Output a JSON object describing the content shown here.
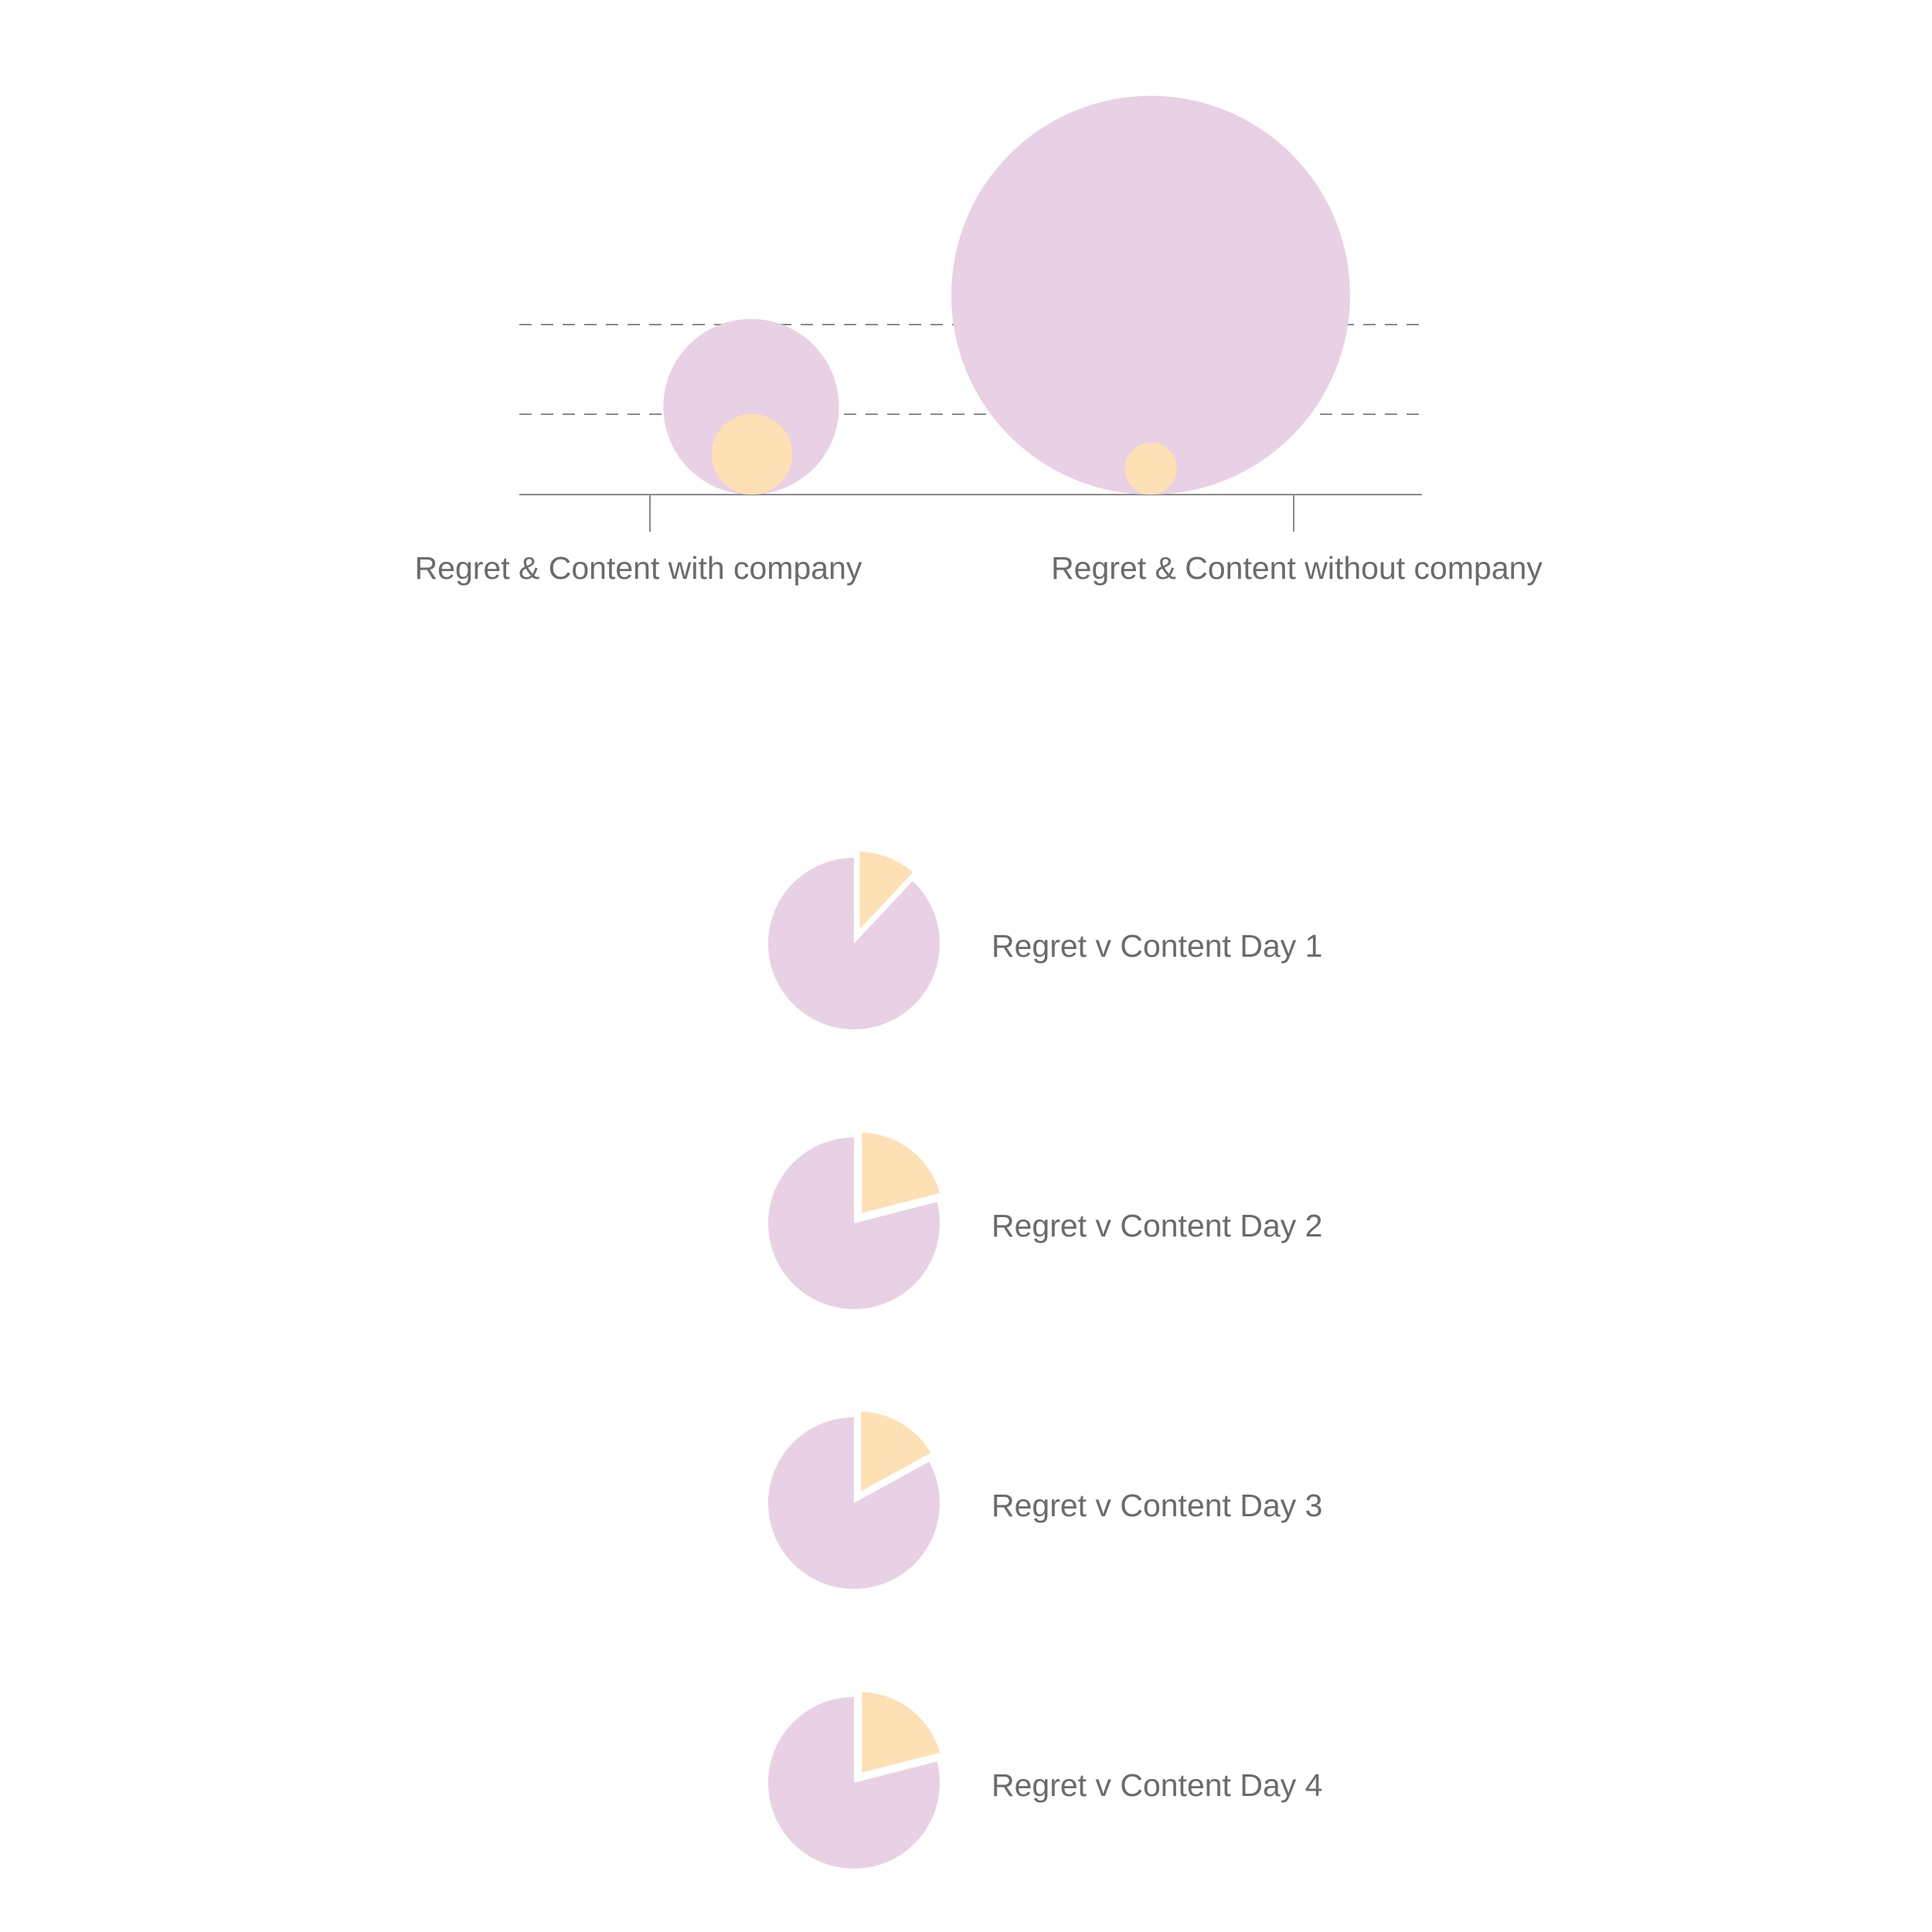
{
  "colors": {
    "regret": "#e8d1e4",
    "content": "#fde0b4",
    "text": "#6b6b6b",
    "axis": "#8a8a8a",
    "gridline": "#8a8a8a",
    "background": "#ffffff"
  },
  "chart_data": [
    {
      "type": "bubble",
      "grid": "dashed horizontal",
      "categories": [
        "Regret & Content with company",
        "Regret & Content without company"
      ],
      "series": [
        {
          "key": "regret",
          "values": [
            19.4,
            100
          ]
        },
        {
          "key": "content",
          "values": [
            4.1,
            1.7
          ]
        }
      ]
    },
    {
      "type": "pie",
      "slices": [
        {
          "label": "Regret v Content Day 1",
          "fractions": {
            "regret": 0.88,
            "content": 0.12
          }
        },
        {
          "label": "Regret v Content Day 2",
          "fractions": {
            "regret": 0.79,
            "content": 0.21
          }
        },
        {
          "label": "Regret v Content Day 3",
          "fractions": {
            "regret": 0.83,
            "content": 0.17
          }
        },
        {
          "label": "Regret v Content Day 4",
          "fractions": {
            "regret": 0.79,
            "content": 0.21
          }
        }
      ]
    }
  ]
}
